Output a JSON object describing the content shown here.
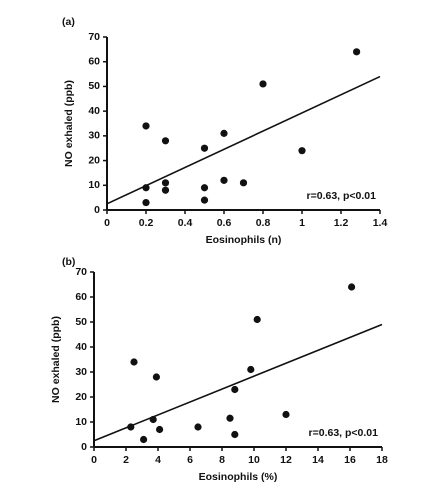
{
  "chart_data": [
    {
      "type": "scatter",
      "panel": "(a)",
      "xlabel": "Eosinophils (n)",
      "ylabel": "NO exhaled (ppb)",
      "annotation": "r=0.63, p<0.01",
      "x": [
        0.2,
        0.2,
        0.2,
        0.3,
        0.3,
        0.3,
        0.5,
        0.5,
        0.5,
        0.6,
        0.6,
        0.7,
        0.8,
        1.0,
        1.28
      ],
      "values": [
        34,
        9,
        3,
        28,
        11,
        8,
        25,
        9,
        4,
        31,
        12,
        11,
        51,
        24,
        64
      ],
      "color": "#111111",
      "trend": {
        "x": [
          0,
          1.4
        ],
        "y": [
          2.5,
          54
        ]
      },
      "xlim": [
        0,
        1.4
      ],
      "xticks": [
        0,
        0.2,
        0.4,
        0.6,
        0.8,
        1,
        {
          "value": 1.2,
          "label": "1.2"
        },
        1.4
      ],
      "ylim": [
        0,
        70
      ],
      "yticks": [
        0,
        10,
        20,
        30,
        40,
        50,
        60,
        70
      ]
    },
    {
      "type": "scatter",
      "panel": "(b)",
      "xlabel": "Eosinophils (%)",
      "ylabel": "NO exhaled (ppb)",
      "annotation": "r=0.63, p<0.01",
      "x": [
        2.3,
        2.5,
        3.1,
        3.7,
        3.9,
        4.1,
        6.5,
        8.5,
        8.8,
        8.8,
        9.8,
        10.2,
        12,
        16.1
      ],
      "values": [
        8,
        34,
        3,
        11,
        28,
        7,
        8,
        11.5,
        23,
        5,
        31,
        51,
        13,
        64
      ],
      "color": "#111111",
      "trend": {
        "x": [
          0,
          18
        ],
        "y": [
          2.5,
          49
        ]
      },
      "xlim": [
        0,
        18
      ],
      "xticks": [
        0,
        2,
        4,
        6,
        8,
        10,
        12,
        14,
        16,
        18
      ],
      "ylim": [
        0,
        70
      ],
      "yticks": [
        0,
        10,
        20,
        30,
        40,
        50,
        60,
        70
      ]
    }
  ]
}
